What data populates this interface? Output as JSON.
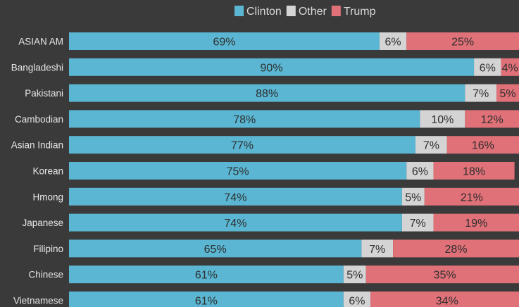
{
  "chart_data": {
    "type": "bar",
    "orientation": "horizontal",
    "stacked": true,
    "title": "",
    "xlabel": "",
    "ylabel": "",
    "xlim": [
      0,
      100
    ],
    "grid": false,
    "legend_position": "top",
    "categories": [
      "ASIAN AM",
      "Bangladeshi",
      "Pakistani",
      "Cambodian",
      "Asian Indian",
      "Korean",
      "Hmong",
      "Japanese",
      "Filipino",
      "Chinese",
      "Vietnamese"
    ],
    "series": [
      {
        "name": "Clinton",
        "color": "#5ab6d2",
        "values": [
          69,
          90,
          88,
          78,
          77,
          75,
          74,
          74,
          65,
          61,
          61
        ],
        "labels": [
          "69%",
          "90%",
          "88%",
          "78%",
          "77%",
          "75%",
          "74%",
          "74%",
          "65%",
          "61%",
          "61%"
        ]
      },
      {
        "name": "Other",
        "color": "#d4d4d4",
        "values": [
          6,
          6,
          7,
          10,
          7,
          6,
          5,
          7,
          7,
          5,
          6
        ],
        "labels": [
          "6%",
          "6%",
          "7%",
          "10%",
          "7%",
          "6%",
          "5%",
          "7%",
          "7%",
          "5%",
          "6%"
        ]
      },
      {
        "name": "Trump",
        "color": "#e07178",
        "values": [
          25,
          4,
          5,
          12,
          16,
          18,
          21,
          19,
          28,
          35,
          34
        ],
        "labels": [
          "25%",
          "4%",
          "5%",
          "12%",
          "16%",
          "18%",
          "21%",
          "19%",
          "28%",
          "35%",
          "34%"
        ]
      }
    ]
  }
}
